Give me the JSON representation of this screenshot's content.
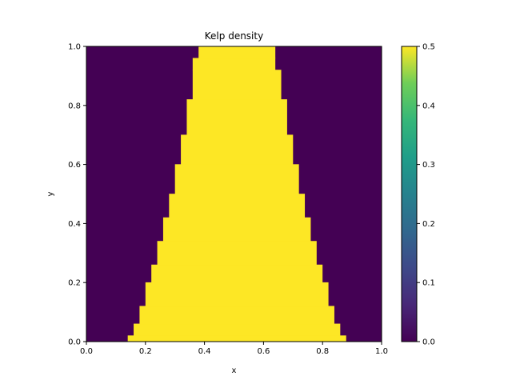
{
  "chart_data": {
    "type": "heatmap",
    "title": "Kelp density",
    "xlabel": "x",
    "ylabel": "y",
    "xlim": [
      0,
      1
    ],
    "ylim": [
      0,
      1
    ],
    "x_ticks": [
      "0.0",
      "0.2",
      "0.4",
      "0.6",
      "0.8",
      "1.0"
    ],
    "y_ticks": [
      "0.0",
      "0.2",
      "0.4",
      "0.6",
      "0.8",
      "1.0"
    ],
    "colorbar": {
      "range": [
        0,
        0.5
      ],
      "ticks": [
        "0.0",
        "0.1",
        "0.2",
        "0.3",
        "0.4",
        "0.5"
      ],
      "colormap": "viridis"
    },
    "low_value": 0.0,
    "high_value": 0.5,
    "low_color": "#440154",
    "high_color": "#fde725",
    "bands": [
      {
        "y0": 0.0,
        "y1": 0.02,
        "x_min": 0.14,
        "x_max": 0.88
      },
      {
        "y0": 0.02,
        "y1": 0.06,
        "x_min": 0.16,
        "x_max": 0.86
      },
      {
        "y0": 0.06,
        "y1": 0.12,
        "x_min": 0.18,
        "x_max": 0.84
      },
      {
        "y0": 0.12,
        "y1": 0.2,
        "x_min": 0.2,
        "x_max": 0.82
      },
      {
        "y0": 0.2,
        "y1": 0.26,
        "x_min": 0.22,
        "x_max": 0.8
      },
      {
        "y0": 0.26,
        "y1": 0.34,
        "x_min": 0.24,
        "x_max": 0.78
      },
      {
        "y0": 0.34,
        "y1": 0.42,
        "x_min": 0.26,
        "x_max": 0.76
      },
      {
        "y0": 0.42,
        "y1": 0.5,
        "x_min": 0.28,
        "x_max": 0.74
      },
      {
        "y0": 0.5,
        "y1": 0.6,
        "x_min": 0.3,
        "x_max": 0.72
      },
      {
        "y0": 0.6,
        "y1": 0.7,
        "x_min": 0.32,
        "x_max": 0.7
      },
      {
        "y0": 0.7,
        "y1": 0.82,
        "x_min": 0.34,
        "x_max": 0.68
      },
      {
        "y0": 0.82,
        "y1": 0.92,
        "x_min": 0.36,
        "x_max": 0.66
      },
      {
        "y0": 0.92,
        "y1": 0.96,
        "x_min": 0.36,
        "x_max": 0.64
      },
      {
        "y0": 0.96,
        "y1": 1.0,
        "x_min": 0.38,
        "x_max": 0.64
      }
    ]
  }
}
